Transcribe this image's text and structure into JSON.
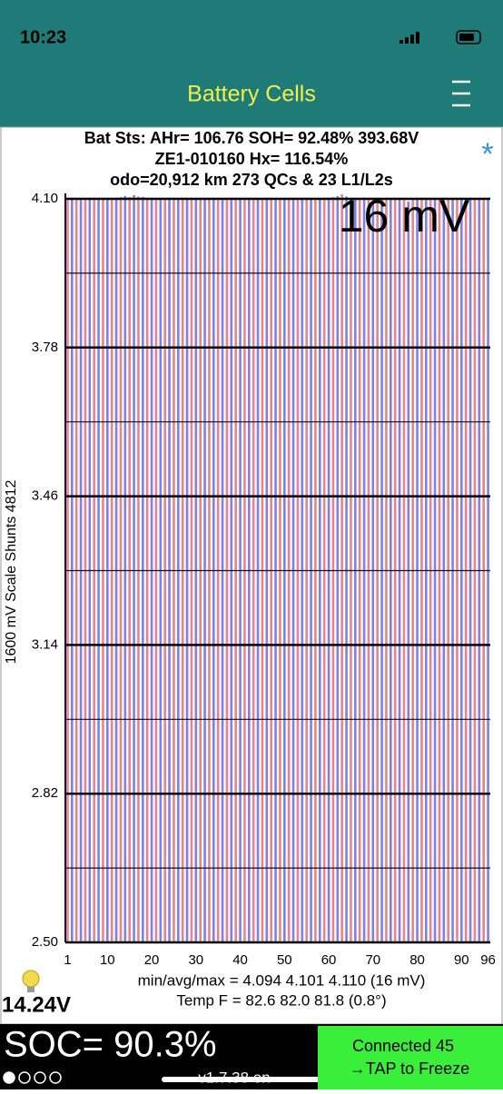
{
  "status_bar": {
    "time": "10:23"
  },
  "nav": {
    "title": "Battery Cells"
  },
  "info": {
    "line1": "Bat Sts: AHr= 106.76 SOH= 92.48% 393.68V",
    "line2": "ZE1-010160   Hx= 116.54%",
    "line3": "odo=20,912 km 273 QCs & 23 L1/L2s",
    "spread": "16 mV",
    "asterisk": "*"
  },
  "chart_data": {
    "type": "bar",
    "ylabel": "1600 mV Scale   Shunts 4812",
    "categories": [
      "1",
      null,
      null,
      null,
      null,
      null,
      null,
      null,
      null,
      "10",
      null,
      null,
      null,
      null,
      null,
      null,
      null,
      null,
      null,
      "20",
      null,
      null,
      null,
      null,
      null,
      null,
      null,
      null,
      null,
      "30",
      null,
      null,
      null,
      null,
      null,
      null,
      null,
      null,
      null,
      "40",
      null,
      null,
      null,
      null,
      null,
      null,
      null,
      null,
      null,
      "50",
      null,
      null,
      null,
      null,
      null,
      null,
      null,
      null,
      null,
      "60",
      null,
      null,
      null,
      null,
      null,
      null,
      null,
      null,
      null,
      "70",
      null,
      null,
      null,
      null,
      null,
      null,
      null,
      null,
      null,
      "80",
      null,
      null,
      null,
      null,
      null,
      null,
      null,
      null,
      null,
      "90",
      null,
      null,
      null,
      null,
      null,
      "96"
    ],
    "values": [
      4.1,
      4.101,
      4.1,
      4.102,
      4.1,
      4.101,
      4.1,
      4.099,
      4.1,
      4.101,
      4.1,
      4.102,
      4.104,
      4.106,
      4.104,
      4.108,
      4.105,
      4.104,
      4.1,
      4.101,
      4.1,
      4.099,
      4.1,
      4.101,
      4.1,
      4.1,
      4.101,
      4.1,
      4.099,
      4.1,
      4.101,
      4.1,
      4.1,
      4.098,
      4.1,
      4.101,
      4.1,
      4.1,
      4.101,
      4.1,
      4.099,
      4.1,
      4.1,
      4.101,
      4.1,
      4.1,
      4.099,
      4.1,
      4.101,
      4.1,
      4.1,
      4.099,
      4.1,
      4.101,
      4.1,
      4.1,
      4.1,
      4.101,
      4.1,
      4.102,
      4.104,
      4.106,
      4.11,
      4.105,
      4.102,
      4.1,
      4.101,
      4.1,
      4.099,
      4.1,
      4.101,
      4.1,
      4.1,
      4.098,
      4.1,
      4.101,
      4.1,
      4.094,
      4.1,
      4.101,
      4.1,
      4.099,
      4.1,
      4.101,
      4.1,
      4.1,
      4.101,
      4.1,
      4.099,
      4.1,
      4.101,
      4.1,
      4.1,
      4.101,
      4.1,
      4.1
    ],
    "colors": [
      "#e8838d",
      "#7f7fe6"
    ],
    "ylim": [
      2.5,
      4.1
    ],
    "yticks": [
      {
        "value": 2.5,
        "label": "2.50"
      },
      2.82,
      3.14,
      3.46,
      3.78,
      {
        "value": 4.1,
        "label": "4.10"
      }
    ],
    "minor_yticks": [
      2.66,
      2.98,
      3.3,
      3.62,
      3.94
    ],
    "grid": true
  },
  "stats": {
    "minavgmax": "min/avg/max = 4.094 4.101 4.110  (16 mV)",
    "temp": "Temp F = 82.6  82.0  81.8  (0.8°)"
  },
  "voltage": "14.24V",
  "footer": {
    "soc": "SOC= 90.3%",
    "connected": "Connected 45",
    "tap": "→TAP to Freeze",
    "version": "v1.7.38 en"
  }
}
